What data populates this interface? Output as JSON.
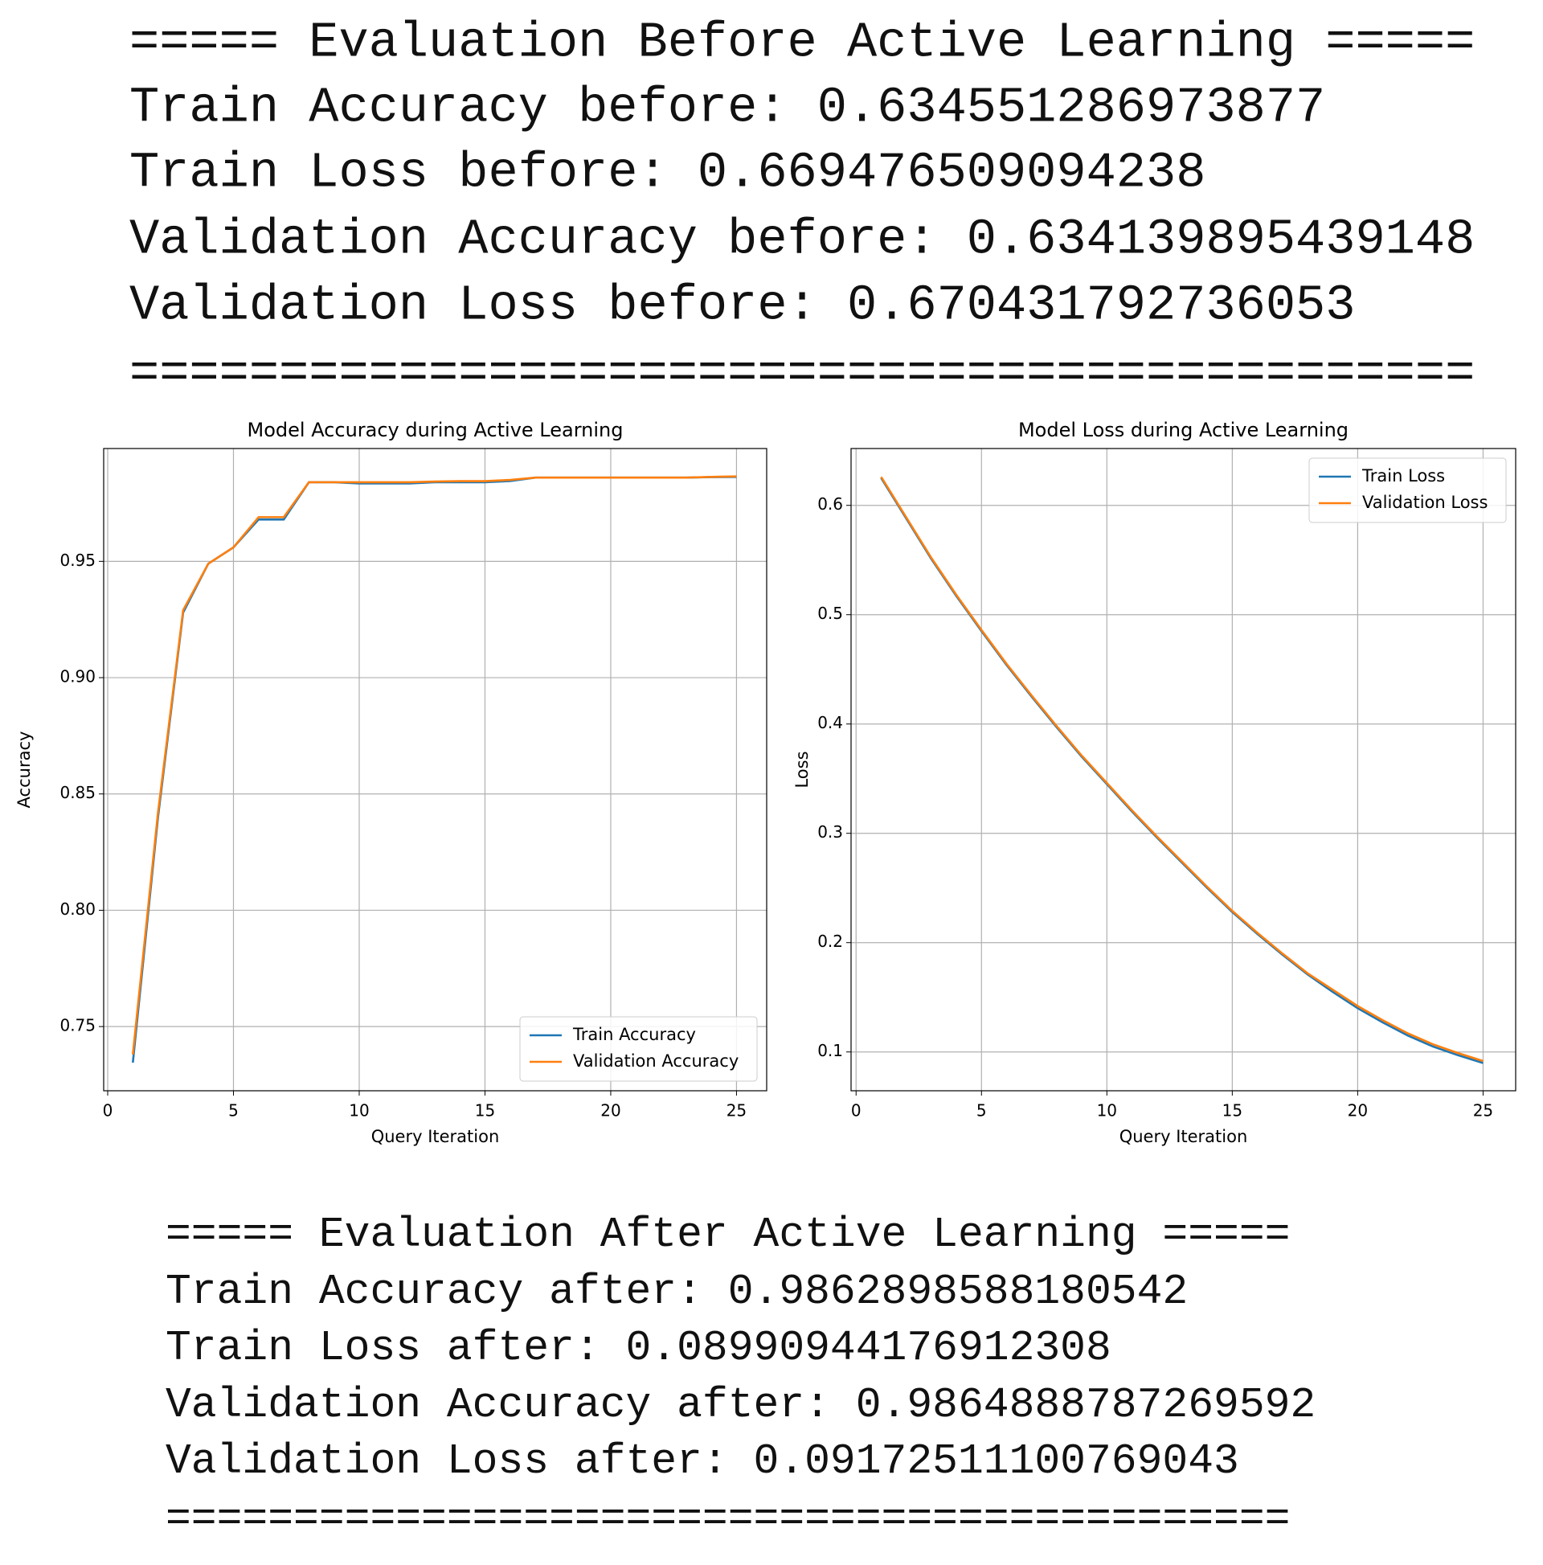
{
  "before": {
    "lines": [
      "===== Evaluation Before Active Learning =====",
      "Train Accuracy before: 0.634551286973877",
      "Train Loss before: 0.669476509094238",
      "Validation Accuracy before: 0.634139895439148",
      "Validation Loss before: 0.670431792736053",
      "============================================="
    ]
  },
  "chart_data": [
    {
      "type": "line",
      "title": "Model Accuracy during Active Learning",
      "x_label": "Query Iteration",
      "y_label": "Accuracy",
      "x": [
        1,
        2,
        3,
        4,
        5,
        6,
        7,
        8,
        9,
        10,
        11,
        12,
        13,
        14,
        15,
        16,
        17,
        18,
        19,
        20,
        21,
        22,
        23,
        24,
        25
      ],
      "series": [
        {
          "name": "Train Accuracy",
          "color": "#1f77b4",
          "values": [
            0.7345,
            0.84,
            0.928,
            0.949,
            0.956,
            0.968,
            0.968,
            0.984,
            0.984,
            0.9835,
            0.9835,
            0.9835,
            0.984,
            0.984,
            0.984,
            0.9845,
            0.986,
            0.986,
            0.986,
            0.986,
            0.986,
            0.986,
            0.986,
            0.9862,
            0.9863
          ]
        },
        {
          "name": "Validation Accuracy",
          "color": "#ff7f0e",
          "values": [
            0.738,
            0.842,
            0.929,
            0.949,
            0.956,
            0.969,
            0.969,
            0.984,
            0.984,
            0.984,
            0.984,
            0.984,
            0.9843,
            0.9845,
            0.9845,
            0.985,
            0.986,
            0.986,
            0.986,
            0.986,
            0.986,
            0.986,
            0.986,
            0.9863,
            0.9865
          ]
        }
      ],
      "xlim": [
        -0.16,
        26.2
      ],
      "ylim": [
        0.7224,
        0.9985
      ],
      "xticks": [
        0,
        5,
        10,
        15,
        20,
        25
      ],
      "yticks": [
        0.75,
        {
          "value": 0.8,
          "label": "0.80"
        },
        0.85,
        {
          "value": 0.9,
          "label": "0.90"
        },
        0.95
      ],
      "grid": true,
      "legend": "lower right"
    },
    {
      "type": "line",
      "title": "Model Loss during Active Learning",
      "x_label": "Query Iteration",
      "y_label": "Loss",
      "x": [
        1,
        2,
        3,
        4,
        5,
        6,
        7,
        8,
        9,
        10,
        11,
        12,
        13,
        14,
        15,
        16,
        17,
        18,
        19,
        20,
        21,
        22,
        23,
        24,
        25
      ],
      "series": [
        {
          "name": "Train Loss",
          "color": "#1f77b4",
          "values": [
            0.625,
            0.588,
            0.551,
            0.517,
            0.485,
            0.454,
            0.425,
            0.397,
            0.37,
            0.345,
            0.32,
            0.296,
            0.273,
            0.25,
            0.228,
            0.208,
            0.189,
            0.171,
            0.155,
            0.14,
            0.127,
            0.115,
            0.105,
            0.097,
            0.0899
          ]
        },
        {
          "name": "Validation Loss",
          "color": "#ff7f0e",
          "values": [
            0.626,
            0.589,
            0.552,
            0.518,
            0.486,
            0.455,
            0.426,
            0.398,
            0.371,
            0.346,
            0.321,
            0.297,
            0.274,
            0.251,
            0.229,
            0.209,
            0.19,
            0.172,
            0.157,
            0.142,
            0.129,
            0.117,
            0.107,
            0.099,
            0.0917
          ]
        }
      ],
      "xlim": [
        -0.2,
        26.3
      ],
      "ylim": [
        0.0645,
        0.652
      ],
      "xticks": [
        0,
        5,
        10,
        15,
        20,
        25
      ],
      "yticks": [
        0.1,
        0.2,
        0.3,
        0.4,
        0.5,
        0.6
      ],
      "grid": true,
      "legend": "upper right"
    }
  ],
  "after": {
    "lines": [
      "===== Evaluation After Active Learning =====",
      "Train Accuracy after: 0.9862898588180542",
      "Train Loss after: 0.08990944176912308",
      "Validation Accuracy after: 0.9864888787269592",
      "Validation Loss after: 0.09172511100769043",
      "============================================"
    ]
  }
}
